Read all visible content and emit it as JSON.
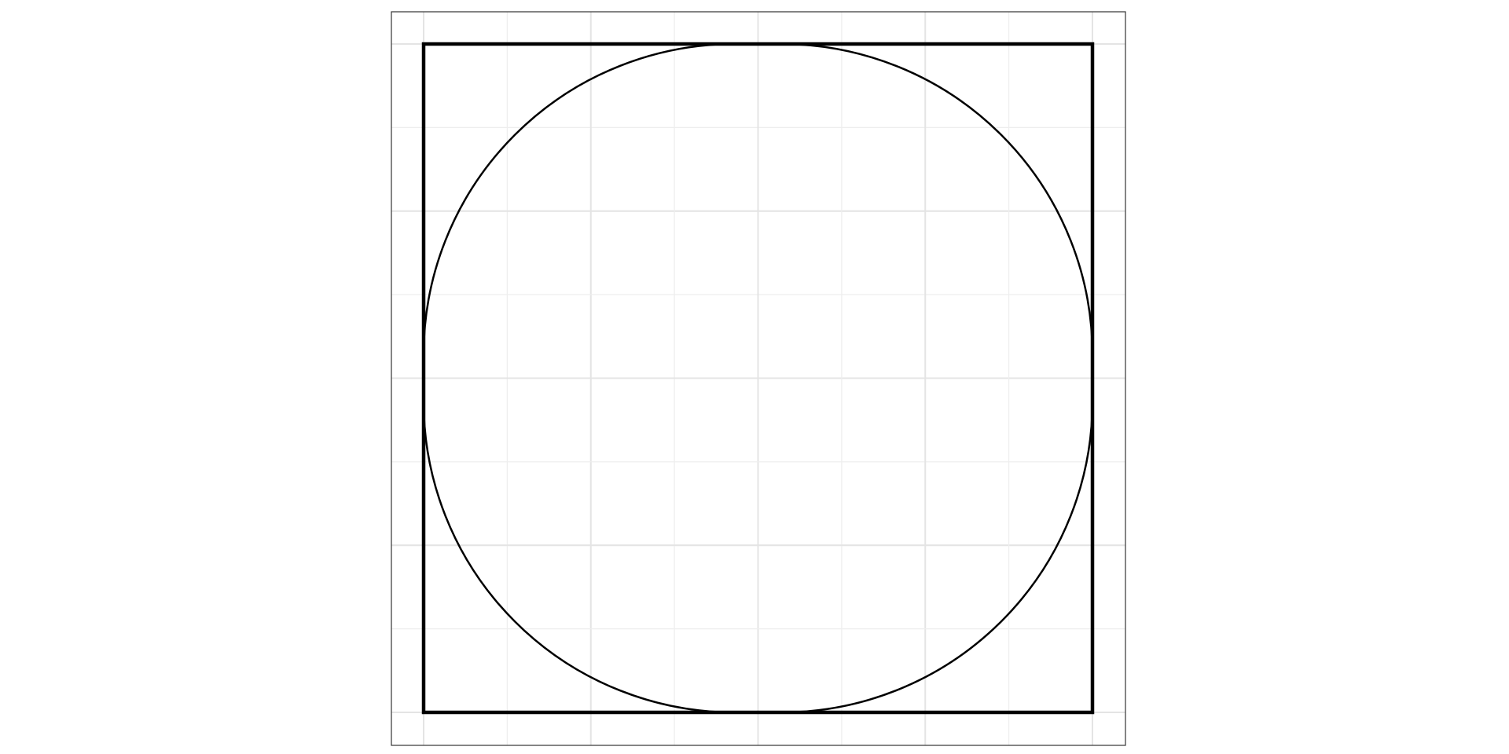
{
  "diagram": {
    "grid": {
      "visible": true,
      "divisions": 8,
      "major_color": "#e4e4e4",
      "minor_color": "#eeeeee"
    },
    "frame_color": "#333333",
    "square": {
      "color": "#000000"
    },
    "circle": {
      "color": "#000000",
      "flat_segment_fraction": 0.07
    }
  }
}
